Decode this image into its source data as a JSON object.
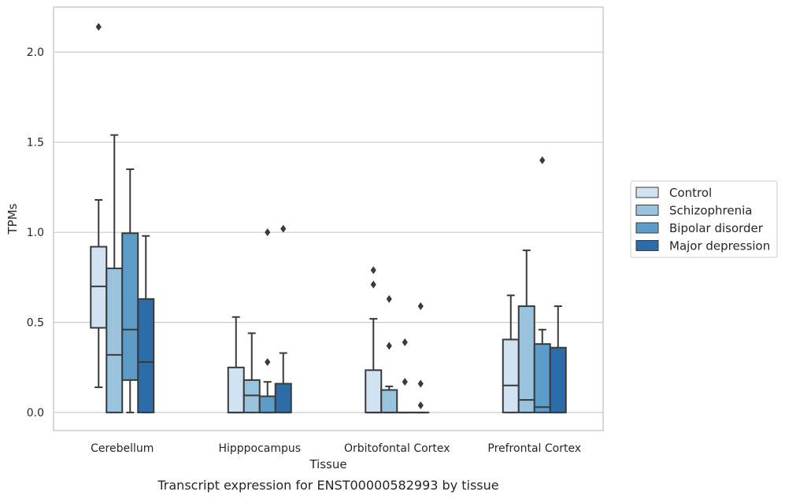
{
  "chart_data": {
    "type": "box",
    "xlabel": "Tissue",
    "ylabel": "TPMs",
    "caption": "Transcript expression for ENST00000582993 by tissue",
    "ylim": [
      -0.1,
      2.25
    ],
    "yticks": [
      "0.0",
      "0.5",
      "1.0",
      "1.5",
      "2.0"
    ],
    "ytick_values": [
      0,
      0.5,
      1.0,
      1.5,
      2.0
    ],
    "grid": "horizontal",
    "legend_position": "right",
    "categories": [
      "Cerebellum",
      "Hipppocampus",
      "Orbitofontal Cortex",
      "Prefrontal Cortex"
    ],
    "series": [
      {
        "name": "Control",
        "color": "#d1e2f2",
        "boxes": [
          {
            "q1": 0.47,
            "median": 0.7,
            "q3": 0.92,
            "whisker_low": 0.14,
            "whisker_high": 1.18,
            "outliers": [
              2.14
            ]
          },
          {
            "q1": 0.0,
            "median": 0.0,
            "q3": 0.25,
            "whisker_low": 0.0,
            "whisker_high": 0.53,
            "outliers": []
          },
          {
            "q1": 0.0,
            "median": 0.0,
            "q3": 0.235,
            "whisker_low": 0.0,
            "whisker_high": 0.52,
            "outliers": [
              0.71,
              0.79
            ]
          },
          {
            "q1": 0.0,
            "median": 0.15,
            "q3": 0.405,
            "whisker_low": 0.0,
            "whisker_high": 0.65,
            "outliers": []
          }
        ]
      },
      {
        "name": "Schizophrenia",
        "color": "#9ac3de",
        "boxes": [
          {
            "q1": 0.0,
            "median": 0.32,
            "q3": 0.8,
            "whisker_low": 0.0,
            "whisker_high": 1.54,
            "outliers": []
          },
          {
            "q1": 0.0,
            "median": 0.095,
            "q3": 0.18,
            "whisker_low": 0.0,
            "whisker_high": 0.44,
            "outliers": []
          },
          {
            "q1": 0.0,
            "median": 0.0,
            "q3": 0.125,
            "whisker_low": 0.0,
            "whisker_high": 0.145,
            "outliers": [
              0.37,
              0.63
            ]
          },
          {
            "q1": 0.0,
            "median": 0.07,
            "q3": 0.59,
            "whisker_low": 0.0,
            "whisker_high": 0.9,
            "outliers": []
          }
        ]
      },
      {
        "name": "Bipolar disorder",
        "color": "#5b9dc8",
        "boxes": [
          {
            "q1": 0.18,
            "median": 0.46,
            "q3": 0.995,
            "whisker_low": 0.0,
            "whisker_high": 1.35,
            "outliers": []
          },
          {
            "q1": 0.0,
            "median": 0.0,
            "q3": 0.09,
            "whisker_low": 0.0,
            "whisker_high": 0.17,
            "outliers": [
              0.28,
              1.0
            ]
          },
          {
            "q1": 0.0,
            "median": 0.0,
            "q3": 0.0,
            "whisker_low": 0.0,
            "whisker_high": 0.0,
            "outliers": [
              0.17,
              0.39
            ]
          },
          {
            "q1": 0.0,
            "median": 0.03,
            "q3": 0.38,
            "whisker_low": 0.0,
            "whisker_high": 0.46,
            "outliers": [
              1.4
            ]
          }
        ]
      },
      {
        "name": "Major depression",
        "color": "#2b6ca9",
        "boxes": [
          {
            "q1": 0.0,
            "median": 0.28,
            "q3": 0.63,
            "whisker_low": 0.0,
            "whisker_high": 0.98,
            "outliers": []
          },
          {
            "q1": 0.0,
            "median": 0.0,
            "q3": 0.16,
            "whisker_low": 0.0,
            "whisker_high": 0.33,
            "outliers": [
              1.02
            ]
          },
          {
            "q1": 0.0,
            "median": 0.0,
            "q3": 0.0,
            "whisker_low": 0.0,
            "whisker_high": 0.0,
            "outliers": [
              0.04,
              0.16,
              0.59
            ]
          },
          {
            "q1": 0.0,
            "median": 0.0,
            "q3": 0.36,
            "whisker_low": 0.0,
            "whisker_high": 0.59,
            "outliers": []
          }
        ]
      }
    ]
  }
}
